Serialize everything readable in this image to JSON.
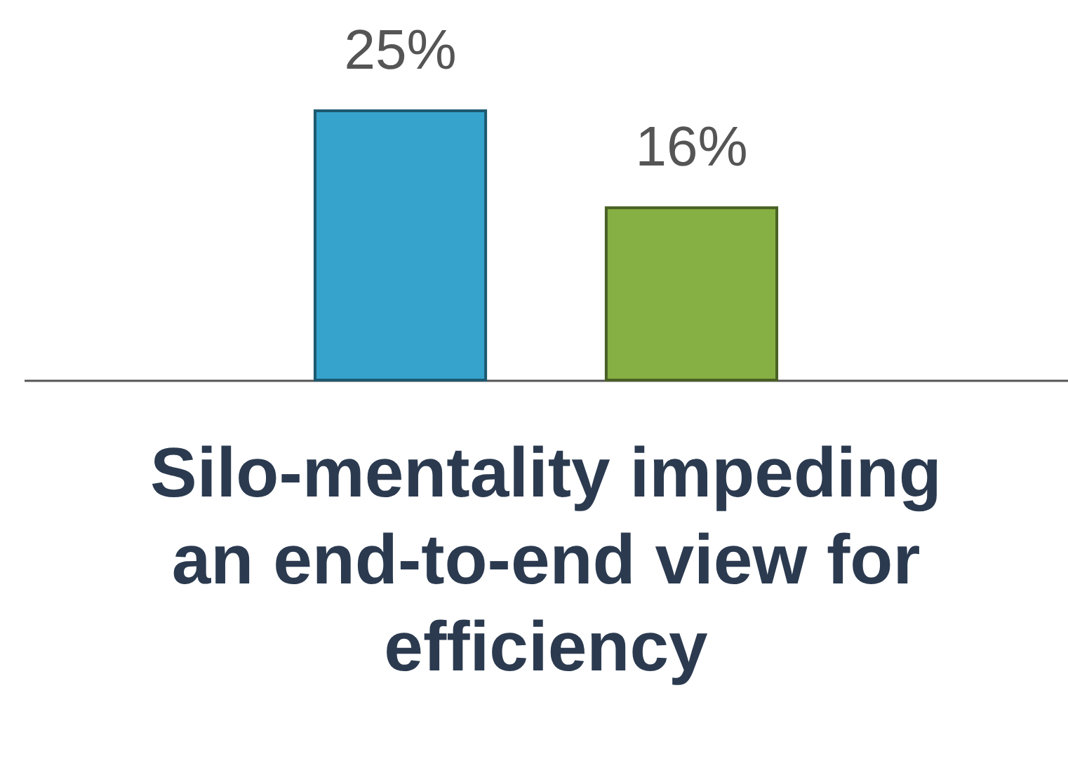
{
  "chart_data": {
    "type": "bar",
    "title": "Silo-mentality impeding an end-to-end view for efficiency",
    "categories": [
      null,
      null
    ],
    "values": [
      25,
      16
    ],
    "colors": [
      "#36a3cc",
      "#86b043"
    ],
    "value_labels": [
      "25%",
      "16%"
    ],
    "grid": false
  }
}
